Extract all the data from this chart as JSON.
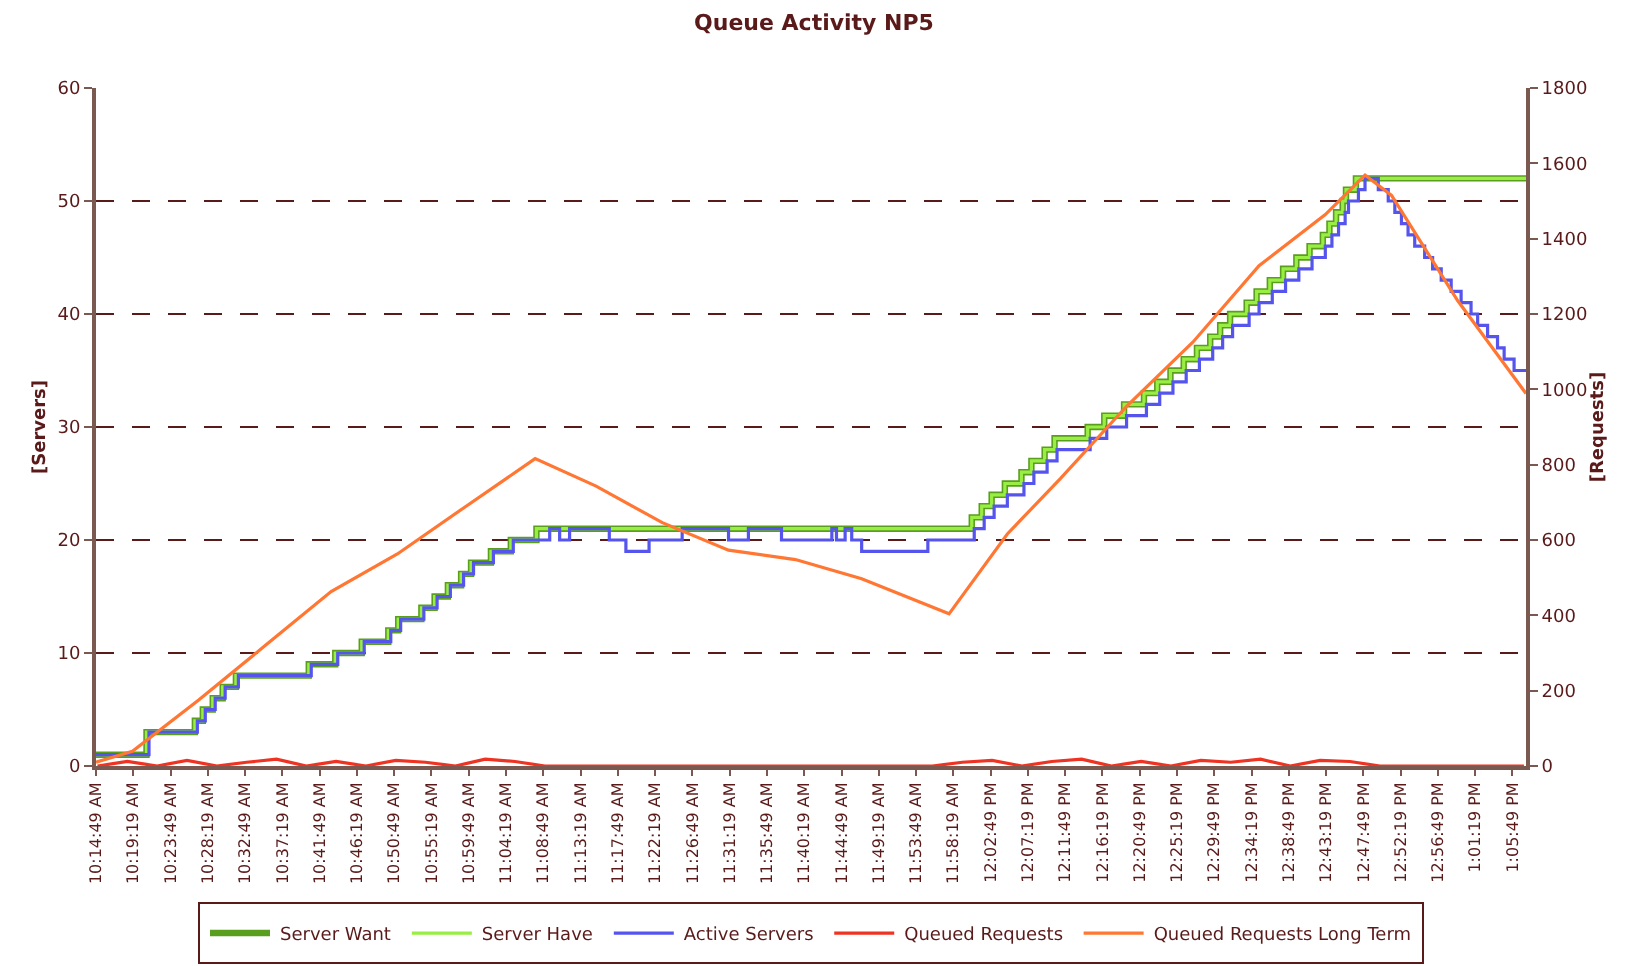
{
  "chart_data": {
    "type": "line",
    "title": "Queue Activity NP5",
    "ylabel": "[Servers]",
    "y2label": "[Requests]",
    "xlim": [
      10.2469,
      13.1242
    ],
    "ylim": [
      0,
      60
    ],
    "yticks": [
      0,
      10,
      20,
      30,
      40,
      50,
      60
    ],
    "y2lim": [
      0,
      1800
    ],
    "y2ticks": [
      0,
      200,
      400,
      600,
      800,
      1000,
      1200,
      1400,
      1600,
      1800
    ],
    "xticks": [
      {
        "value": 10.2469,
        "label": "10:14:49 AM"
      },
      {
        "value": 10.3219,
        "label": "10:19:19 AM"
      },
      {
        "value": 10.3969,
        "label": "10:23:49 AM"
      },
      {
        "value": 10.4719,
        "label": "10:28:19 AM"
      },
      {
        "value": 10.5469,
        "label": "10:32:49 AM"
      },
      {
        "value": 10.6219,
        "label": "10:37:19 AM"
      },
      {
        "value": 10.6969,
        "label": "10:41:49 AM"
      },
      {
        "value": 10.7719,
        "label": "10:46:19 AM"
      },
      {
        "value": 10.8469,
        "label": "10:50:49 AM"
      },
      {
        "value": 10.9219,
        "label": "10:55:19 AM"
      },
      {
        "value": 10.9969,
        "label": "10:59:49 AM"
      },
      {
        "value": 11.0719,
        "label": "11:04:19 AM"
      },
      {
        "value": 11.1469,
        "label": "11:08:49 AM"
      },
      {
        "value": 11.2219,
        "label": "11:13:19 AM"
      },
      {
        "value": 11.2969,
        "label": "11:17:49 AM"
      },
      {
        "value": 11.3719,
        "label": "11:22:19 AM"
      },
      {
        "value": 11.4469,
        "label": "11:26:49 AM"
      },
      {
        "value": 11.5219,
        "label": "11:31:19 AM"
      },
      {
        "value": 11.5969,
        "label": "11:35:49 AM"
      },
      {
        "value": 11.6719,
        "label": "11:40:19 AM"
      },
      {
        "value": 11.7469,
        "label": "11:44:49 AM"
      },
      {
        "value": 11.8219,
        "label": "11:49:19 AM"
      },
      {
        "value": 11.8969,
        "label": "11:53:49 AM"
      },
      {
        "value": 11.9719,
        "label": "11:58:19 AM"
      },
      {
        "value": 12.0469,
        "label": "12:02:49 PM"
      },
      {
        "value": 12.1219,
        "label": "12:07:19 PM"
      },
      {
        "value": 12.1969,
        "label": "12:11:49 PM"
      },
      {
        "value": 12.2719,
        "label": "12:16:19 PM"
      },
      {
        "value": 12.3469,
        "label": "12:20:49 PM"
      },
      {
        "value": 12.4219,
        "label": "12:25:19 PM"
      },
      {
        "value": 12.4969,
        "label": "12:29:49 PM"
      },
      {
        "value": 12.5719,
        "label": "12:34:19 PM"
      },
      {
        "value": 12.6469,
        "label": "12:38:49 PM"
      },
      {
        "value": 12.7219,
        "label": "12:43:19 PM"
      },
      {
        "value": 12.7969,
        "label": "12:47:49 PM"
      },
      {
        "value": 12.8719,
        "label": "12:52:19 PM"
      },
      {
        "value": 12.9469,
        "label": "12:56:49 PM"
      },
      {
        "value": 13.0219,
        "label": "1:01:19 PM"
      },
      {
        "value": 13.0969,
        "label": "1:05:49 PM"
      }
    ],
    "grid": "y",
    "legend": "bottom",
    "marker": "none",
    "line_style": "solid",
    "series": [
      {
        "name": "Server Want",
        "color": "#5a9e1e",
        "type": "step",
        "x": [
          10.2469,
          10.3485,
          10.4458,
          10.4618,
          10.4818,
          10.5018,
          10.5284,
          10.675,
          10.7283,
          10.7816,
          10.835,
          10.8549,
          10.9016,
          10.9282,
          10.9549,
          10.9815,
          11.0015,
          11.0415,
          11.0815,
          11.1331,
          12.009,
          12.029,
          12.049,
          12.0756,
          12.109,
          12.129,
          12.1556,
          12.1756,
          12.2422,
          12.2756,
          12.3155,
          12.3555,
          12.3822,
          12.4088,
          12.4355,
          12.4621,
          12.4888,
          12.5088,
          12.5288,
          12.5621,
          12.5821,
          12.6087,
          12.6354,
          12.6621,
          12.6887,
          12.7154,
          12.7287,
          12.742,
          12.7553,
          12.762,
          12.782,
          13.1242
        ],
        "values": [
          1,
          3,
          4,
          5,
          6,
          7,
          8,
          9,
          10,
          11,
          12,
          13,
          14,
          15,
          16,
          17,
          18,
          19,
          20,
          21,
          22,
          23,
          24,
          25,
          26,
          27,
          28,
          29,
          30,
          31,
          32,
          33,
          34,
          35,
          36,
          37,
          38,
          39,
          40,
          41,
          42,
          43,
          44,
          45,
          46,
          47,
          48,
          49,
          50,
          51,
          52,
          52
        ]
      },
      {
        "name": "Server Have",
        "color": "#99ee44",
        "type": "step",
        "x": [
          10.2469,
          10.3485,
          10.4458,
          10.4618,
          10.4818,
          10.5018,
          10.5284,
          10.675,
          10.7283,
          10.7816,
          10.835,
          10.8549,
          10.9016,
          10.9282,
          10.9549,
          10.9815,
          11.0015,
          11.0415,
          11.0815,
          11.1331,
          12.009,
          12.029,
          12.049,
          12.0756,
          12.109,
          12.129,
          12.1556,
          12.1756,
          12.2422,
          12.2756,
          12.3155,
          12.3555,
          12.3822,
          12.4088,
          12.4355,
          12.4621,
          12.4888,
          12.5088,
          12.5288,
          12.5621,
          12.5821,
          12.6087,
          12.6354,
          12.6621,
          12.6887,
          12.7154,
          12.7287,
          12.742,
          12.7553,
          12.762,
          12.782,
          13.1242
        ],
        "values": [
          1,
          3,
          4,
          5,
          6,
          7,
          8,
          9,
          10,
          11,
          12,
          13,
          14,
          15,
          16,
          17,
          18,
          19,
          20,
          21,
          22,
          23,
          24,
          25,
          26,
          27,
          28,
          29,
          30,
          31,
          32,
          33,
          34,
          35,
          36,
          37,
          38,
          39,
          40,
          41,
          42,
          43,
          44,
          45,
          46,
          47,
          48,
          49,
          50,
          51,
          52,
          52
        ]
      },
      {
        "name": "Active Servers",
        "color": "#5555ee",
        "type": "step",
        "x": [
          10.2469,
          10.3535,
          10.4508,
          10.4668,
          10.4868,
          10.5068,
          10.5334,
          10.68,
          10.7333,
          10.7866,
          10.84,
          10.8599,
          10.9066,
          10.9332,
          10.9599,
          10.9865,
          11.0065,
          11.0465,
          11.0865,
          11.1598,
          11.1798,
          11.1998,
          11.2797,
          11.3131,
          11.3597,
          11.4263,
          11.5196,
          11.5596,
          11.6262,
          11.7275,
          11.7368,
          11.7542,
          11.7675,
          11.7875,
          11.9207,
          12.014,
          12.034,
          12.054,
          12.0806,
          12.114,
          12.134,
          12.1606,
          12.1806,
          12.2472,
          12.2806,
          12.3205,
          12.3605,
          12.3872,
          12.4138,
          12.4405,
          12.4671,
          12.4938,
          12.5138,
          12.5338,
          12.5671,
          12.5871,
          12.6137,
          12.6404,
          12.6671,
          12.6937,
          12.7204,
          12.7337,
          12.747,
          12.7603,
          12.767,
          12.787,
          12.8003,
          12.827,
          12.847,
          12.8603,
          12.8736,
          12.8869,
          12.9003,
          12.9203,
          12.9363,
          12.9536,
          12.9736,
          12.9936,
          13.0136,
          13.0269,
          13.0469,
          13.0669,
          13.0802,
          13.1002,
          13.1242
        ],
        "values": [
          1,
          3,
          4,
          5,
          6,
          7,
          8,
          9,
          10,
          11,
          12,
          13,
          14,
          15,
          16,
          17,
          18,
          19,
          20,
          21,
          20,
          21,
          20,
          19,
          20,
          21,
          20,
          21,
          20,
          21,
          20,
          21,
          20,
          19,
          20,
          21,
          22,
          23,
          24,
          25,
          26,
          27,
          28,
          29,
          30,
          31,
          32,
          33,
          34,
          35,
          36,
          37,
          38,
          39,
          40,
          41,
          42,
          43,
          44,
          45,
          46,
          47,
          48,
          49,
          50,
          51,
          52,
          51,
          50,
          49,
          48,
          47,
          46,
          45,
          44,
          43,
          42,
          41,
          40,
          39,
          38,
          37,
          36,
          35,
          35
        ]
      },
      {
        "name": "Queued Requests",
        "color": "#ee3322",
        "axis": "y2",
        "x": [
          10.25,
          10.31,
          10.37,
          10.43,
          10.49,
          10.55,
          10.61,
          10.67,
          10.73,
          10.79,
          10.85,
          10.91,
          10.97,
          11.03,
          11.09,
          11.15,
          11.21,
          11.27,
          11.33,
          11.39,
          11.45,
          11.51,
          11.57,
          11.63,
          11.69,
          11.75,
          11.81,
          11.87,
          11.93,
          11.99,
          12.05,
          12.11,
          12.17,
          12.23,
          12.29,
          12.35,
          12.41,
          12.47,
          12.53,
          12.59,
          12.65,
          12.71,
          12.77,
          12.83,
          12.89,
          12.95,
          13.01,
          13.07,
          13.12
        ],
        "values": [
          0,
          12,
          0,
          15,
          0,
          10,
          18,
          0,
          12,
          0,
          15,
          10,
          0,
          18,
          12,
          0,
          0,
          0,
          0,
          0,
          0,
          0,
          0,
          0,
          0,
          0,
          0,
          0,
          0,
          10,
          15,
          0,
          12,
          18,
          0,
          12,
          0,
          15,
          10,
          18,
          0,
          15,
          12,
          0,
          0,
          0,
          0,
          0,
          0
        ]
      },
      {
        "name": "Queued Requests Long Term",
        "color": "#ff7733",
        "axis": "y2",
        "x": [
          10.2469,
          10.3202,
          10.4535,
          10.5867,
          10.72,
          10.8533,
          10.9865,
          11.1305,
          11.2531,
          11.3864,
          11.5196,
          11.6542,
          11.7875,
          11.9634,
          12.0806,
          12.1873,
          12.3205,
          12.4538,
          12.5871,
          12.7204,
          12.8003,
          12.8536,
          12.9869,
          13.1242
        ],
        "values": [
          10,
          39,
          175,
          319,
          463,
          563,
          685,
          816,
          743,
          646,
          573,
          548,
          497,
          404,
          616,
          763,
          955,
          1125,
          1328,
          1464,
          1569,
          1515,
          1235,
          989
        ]
      }
    ]
  }
}
